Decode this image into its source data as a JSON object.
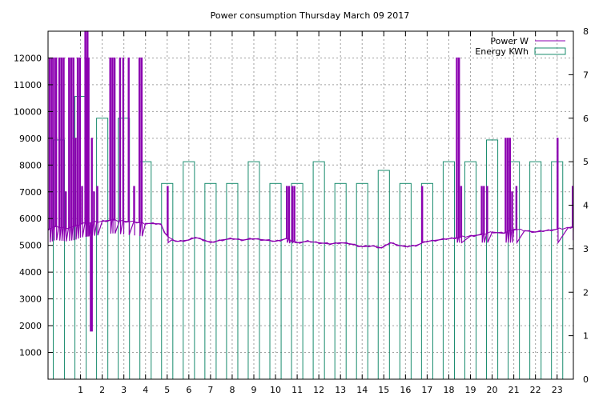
{
  "chart_data": {
    "type": "line",
    "title": "Power consumption Thursday March 09 2017",
    "grid": true,
    "legend_position": "top-right",
    "x_axis": {
      "range": [
        -0.5,
        23.75
      ],
      "ticks": [
        1,
        2,
        3,
        4,
        5,
        6,
        7,
        8,
        9,
        10,
        11,
        12,
        13,
        14,
        15,
        16,
        17,
        18,
        19,
        20,
        21,
        22,
        23
      ]
    },
    "y_axis_left": {
      "range": [
        0,
        13000
      ],
      "ticks": [
        1000,
        2000,
        3000,
        4000,
        5000,
        6000,
        7000,
        8000,
        9000,
        10000,
        11000,
        12000
      ]
    },
    "y_axis_right": {
      "range": [
        0,
        8
      ],
      "ticks": [
        0,
        1,
        2,
        3,
        4,
        5,
        6,
        7,
        8
      ]
    },
    "series": [
      {
        "name": "Power W",
        "color": "#8b00b0",
        "axis": "left",
        "type": "line",
        "baseline": [
          [
            -0.5,
            5600
          ],
          [
            -0.2,
            5700
          ],
          [
            0.3,
            5650
          ],
          [
            0.7,
            5700
          ],
          [
            1.0,
            5800
          ],
          [
            1.5,
            5850
          ],
          [
            2.0,
            5900
          ],
          [
            2.5,
            5950
          ],
          [
            3.0,
            5900
          ],
          [
            3.5,
            5870
          ],
          [
            4.0,
            5820
          ],
          [
            4.7,
            5800
          ],
          [
            4.9,
            5450
          ],
          [
            5.2,
            5200
          ],
          [
            5.5,
            5150
          ],
          [
            6.0,
            5200
          ],
          [
            6.3,
            5300
          ],
          [
            6.7,
            5200
          ],
          [
            7.0,
            5100
          ],
          [
            7.5,
            5200
          ],
          [
            8.0,
            5250
          ],
          [
            8.5,
            5200
          ],
          [
            9.0,
            5250
          ],
          [
            9.5,
            5200
          ],
          [
            10.0,
            5150
          ],
          [
            10.5,
            5250
          ],
          [
            11.0,
            5100
          ],
          [
            11.5,
            5150
          ],
          [
            12.0,
            5100
          ],
          [
            12.5,
            5050
          ],
          [
            13.0,
            5100
          ],
          [
            13.5,
            5050
          ],
          [
            14.0,
            4950
          ],
          [
            14.5,
            4980
          ],
          [
            14.9,
            4900
          ],
          [
            15.3,
            5100
          ],
          [
            15.7,
            5000
          ],
          [
            16.0,
            4950
          ],
          [
            16.5,
            5000
          ],
          [
            17.0,
            5150
          ],
          [
            17.5,
            5200
          ],
          [
            18.0,
            5250
          ],
          [
            18.5,
            5300
          ],
          [
            19.0,
            5350
          ],
          [
            19.5,
            5400
          ],
          [
            20.0,
            5500
          ],
          [
            20.5,
            5450
          ],
          [
            21.0,
            5600
          ],
          [
            21.5,
            5550
          ],
          [
            22.0,
            5500
          ],
          [
            22.5,
            5550
          ],
          [
            23.0,
            5600
          ],
          [
            23.5,
            5650
          ],
          [
            23.75,
            5700
          ]
        ],
        "spikes": [
          [
            -0.45,
            12000
          ],
          [
            -0.35,
            12000
          ],
          [
            -0.25,
            12000
          ],
          [
            -0.15,
            12000
          ],
          [
            0.0,
            12000
          ],
          [
            0.1,
            12000
          ],
          [
            0.2,
            12000
          ],
          [
            0.3,
            7000
          ],
          [
            0.45,
            12000
          ],
          [
            0.55,
            12000
          ],
          [
            0.65,
            12000
          ],
          [
            0.75,
            9000
          ],
          [
            0.85,
            12000
          ],
          [
            0.95,
            12000
          ],
          [
            1.05,
            7200
          ],
          [
            1.2,
            13000
          ],
          [
            1.25,
            12000
          ],
          [
            1.3,
            13000
          ],
          [
            1.35,
            12000
          ],
          [
            1.5,
            9000
          ],
          [
            1.45,
            1800
          ],
          [
            1.6,
            7000
          ],
          [
            1.75,
            7200
          ],
          [
            2.35,
            12000
          ],
          [
            2.45,
            12000
          ],
          [
            2.55,
            12000
          ],
          [
            2.8,
            12000
          ],
          [
            2.95,
            12000
          ],
          [
            3.2,
            12000
          ],
          [
            3.45,
            7200
          ],
          [
            3.7,
            12000
          ],
          [
            3.8,
            12000
          ],
          [
            5.0,
            7200
          ],
          [
            10.5,
            7200
          ],
          [
            10.6,
            7200
          ],
          [
            10.75,
            7200
          ],
          [
            10.85,
            7200
          ],
          [
            16.75,
            7200
          ],
          [
            18.35,
            12000
          ],
          [
            18.45,
            12000
          ],
          [
            18.55,
            7200
          ],
          [
            19.5,
            7200
          ],
          [
            19.6,
            7200
          ],
          [
            19.75,
            7200
          ],
          [
            20.6,
            9000
          ],
          [
            20.7,
            9000
          ],
          [
            20.8,
            9000
          ],
          [
            20.9,
            7000
          ],
          [
            21.1,
            7200
          ],
          [
            23.0,
            9000
          ],
          [
            23.7,
            7200
          ]
        ],
        "min_dip": [
          1.5,
          1800
        ]
      },
      {
        "name": "Energy KWh",
        "color": "#1a8c6e",
        "axis": "right",
        "type": "bar",
        "categories": [
          0,
          1,
          2,
          3,
          4,
          5,
          6,
          7,
          8,
          9,
          10,
          11,
          12,
          13,
          14,
          15,
          16,
          17,
          18,
          19,
          20,
          21,
          22,
          23
        ],
        "values": [
          5.5,
          6.5,
          6.0,
          6.0,
          5.0,
          4.5,
          5.0,
          4.5,
          4.5,
          5.0,
          4.5,
          4.5,
          5.0,
          4.5,
          4.5,
          4.8,
          4.5,
          4.5,
          5.0,
          5.0,
          5.5,
          5.0,
          5.0,
          5.0
        ]
      }
    ]
  }
}
